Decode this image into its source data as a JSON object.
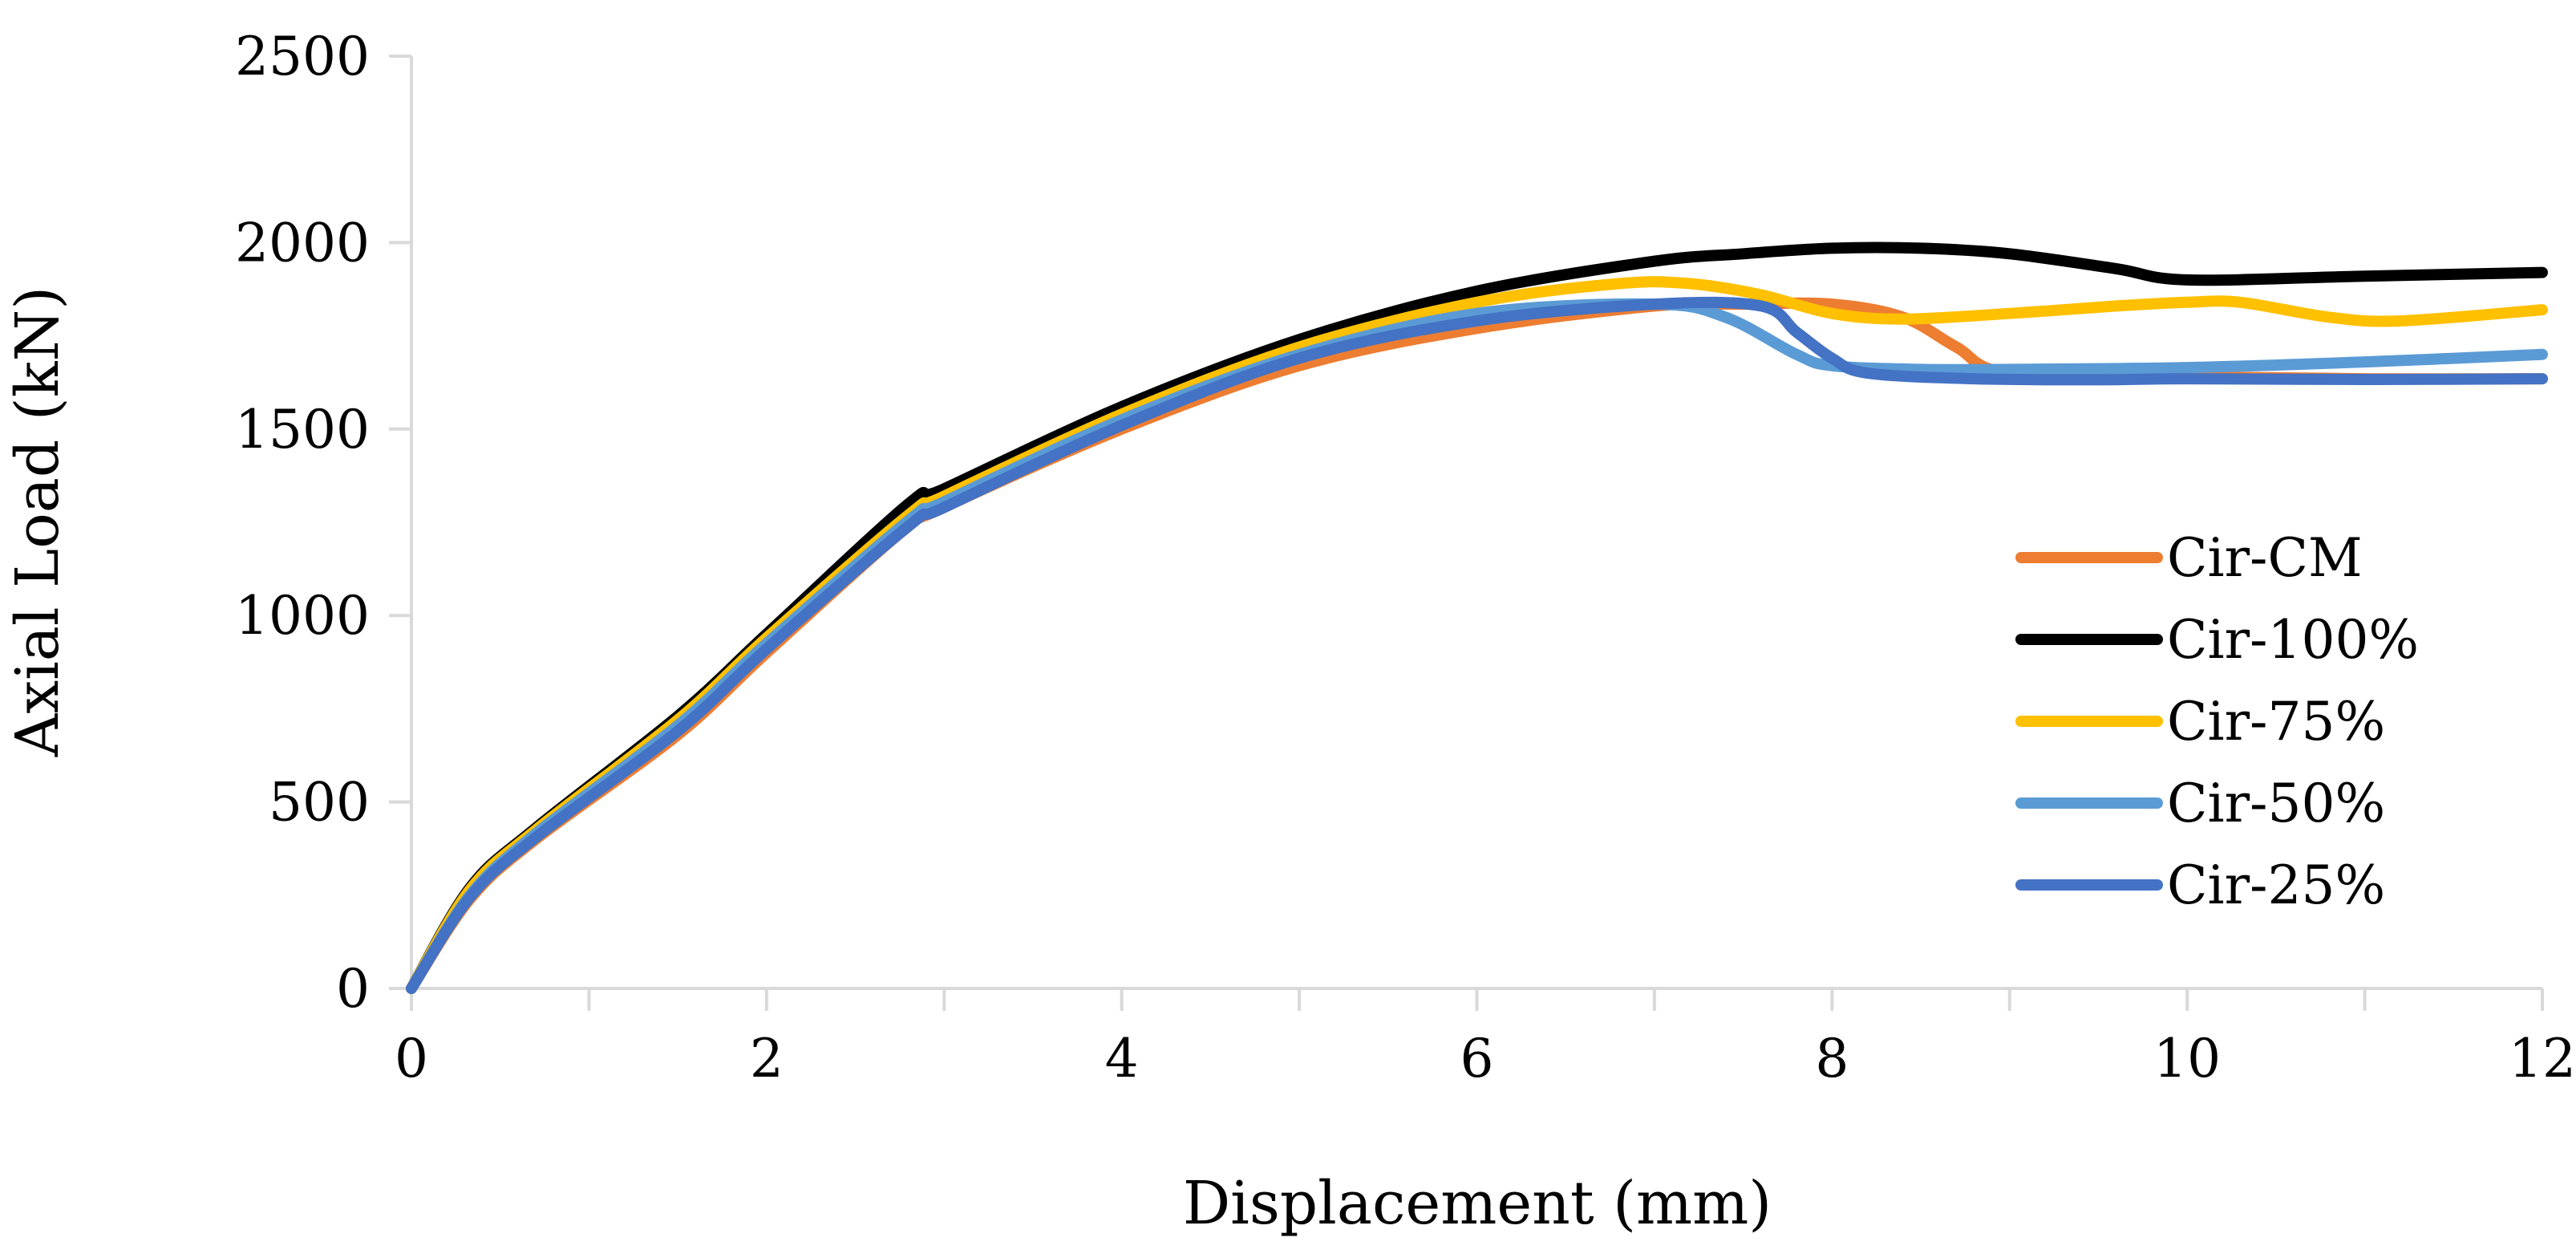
{
  "chart_data": {
    "type": "line",
    "title": "",
    "xlabel": "Displacement (mm)",
    "ylabel": "Axial Load (kN)",
    "xlim": [
      0,
      12
    ],
    "ylim": [
      0,
      2500
    ],
    "xticks": [
      0,
      2,
      4,
      6,
      8,
      10,
      12
    ],
    "yticks": [
      0,
      500,
      1000,
      1500,
      2000,
      2500
    ],
    "grid": false,
    "legend_position": "right",
    "series": [
      {
        "name": "Cir-CM",
        "color": "#ED7D31",
        "x": [
          0,
          0.33,
          0.7,
          1.5,
          2.0,
          2.75,
          3.0,
          4.0,
          5.0,
          6.0,
          7.0,
          7.5,
          8.0,
          8.4,
          8.7,
          9.0,
          10.0,
          11.0,
          12.0
        ],
        "y": [
          0,
          240,
          400,
          680,
          900,
          1220,
          1290,
          1500,
          1670,
          1770,
          1830,
          1835,
          1835,
          1800,
          1720,
          1650,
          1640,
          1635,
          1635
        ]
      },
      {
        "name": "Cir-100%",
        "color": "#000000",
        "x": [
          0,
          0.33,
          0.7,
          1.5,
          2.0,
          2.8,
          3.0,
          4.0,
          5.0,
          6.0,
          7.0,
          7.5,
          8.0,
          8.5,
          9.0,
          9.6,
          10.0,
          11.0,
          12.0
        ],
        "y": [
          0,
          270,
          430,
          730,
          950,
          1300,
          1340,
          1560,
          1740,
          1870,
          1950,
          1970,
          1985,
          1985,
          1970,
          1930,
          1900,
          1910,
          1920
        ]
      },
      {
        "name": "Cir-75%",
        "color": "#FFC000",
        "x": [
          0,
          0.33,
          0.7,
          1.5,
          2.0,
          2.8,
          3.0,
          4.0,
          5.0,
          6.0,
          6.8,
          7.2,
          7.6,
          8.0,
          8.4,
          9.0,
          9.6,
          10.0,
          10.3,
          10.8,
          11.2,
          12.0
        ],
        "y": [
          0,
          265,
          425,
          720,
          940,
          1270,
          1320,
          1540,
          1720,
          1840,
          1890,
          1890,
          1860,
          1810,
          1795,
          1810,
          1830,
          1840,
          1840,
          1800,
          1790,
          1820
        ]
      },
      {
        "name": "Cir-50%",
        "color": "#5B9BD5",
        "x": [
          0,
          0.33,
          0.7,
          1.5,
          2.0,
          2.8,
          3.0,
          4.0,
          5.0,
          6.0,
          7.0,
          7.4,
          7.8,
          8.0,
          8.5,
          9.0,
          10.0,
          11.0,
          12.0
        ],
        "y": [
          0,
          250,
          415,
          705,
          925,
          1255,
          1305,
          1525,
          1700,
          1810,
          1835,
          1800,
          1700,
          1670,
          1660,
          1660,
          1665,
          1680,
          1700
        ]
      },
      {
        "name": "Cir-25%",
        "color": "#4472C4",
        "x": [
          0,
          0.33,
          0.7,
          1.5,
          2.0,
          2.8,
          3.0,
          4.0,
          5.0,
          6.0,
          7.0,
          7.6,
          7.8,
          8.0,
          8.2,
          8.8,
          9.5,
          10.0,
          11.0,
          12.0
        ],
        "y": [
          0,
          245,
          405,
          690,
          910,
          1240,
          1290,
          1510,
          1690,
          1790,
          1835,
          1830,
          1760,
          1690,
          1650,
          1635,
          1632,
          1635,
          1633,
          1635
        ]
      }
    ]
  }
}
